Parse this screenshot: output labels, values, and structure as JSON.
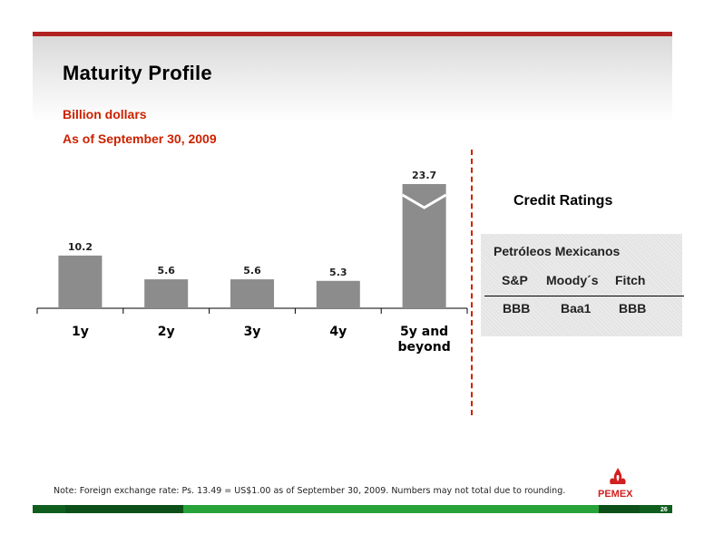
{
  "title": "Maturity Profile",
  "subtitle_1": "Billion dollars",
  "subtitle_2": "As of September 30, 2009",
  "colors": {
    "accent": "#cc2200",
    "bar": "#8c8c8c",
    "green": "#27a33a",
    "red": "#b22222"
  },
  "chart_data": {
    "type": "bar",
    "categories": [
      "1y",
      "2y",
      "3y",
      "4y",
      "5y and beyond"
    ],
    "values": [
      10.2,
      5.6,
      5.6,
      5.3,
      23.7
    ],
    "data_labels": [
      "10.2",
      "5.6",
      "5.6",
      "5.3",
      "23.7"
    ],
    "axis_break": "5y and beyond",
    "xlabel": "",
    "ylabel": "",
    "grid": false
  },
  "credit_ratings": {
    "title": "Credit Ratings",
    "company": "Petróleos Mexicanos",
    "agencies": [
      "S&P",
      "Moody´s",
      "Fitch"
    ],
    "ratings": [
      "BBB",
      "Baa1",
      "BBB"
    ]
  },
  "note": "Note: Foreign exchange rate: Ps. 13.49 = US$1.00 as of September 30, 2009. Numbers may not total due to rounding.",
  "logo_text": "PEMEX",
  "page_number": "26"
}
